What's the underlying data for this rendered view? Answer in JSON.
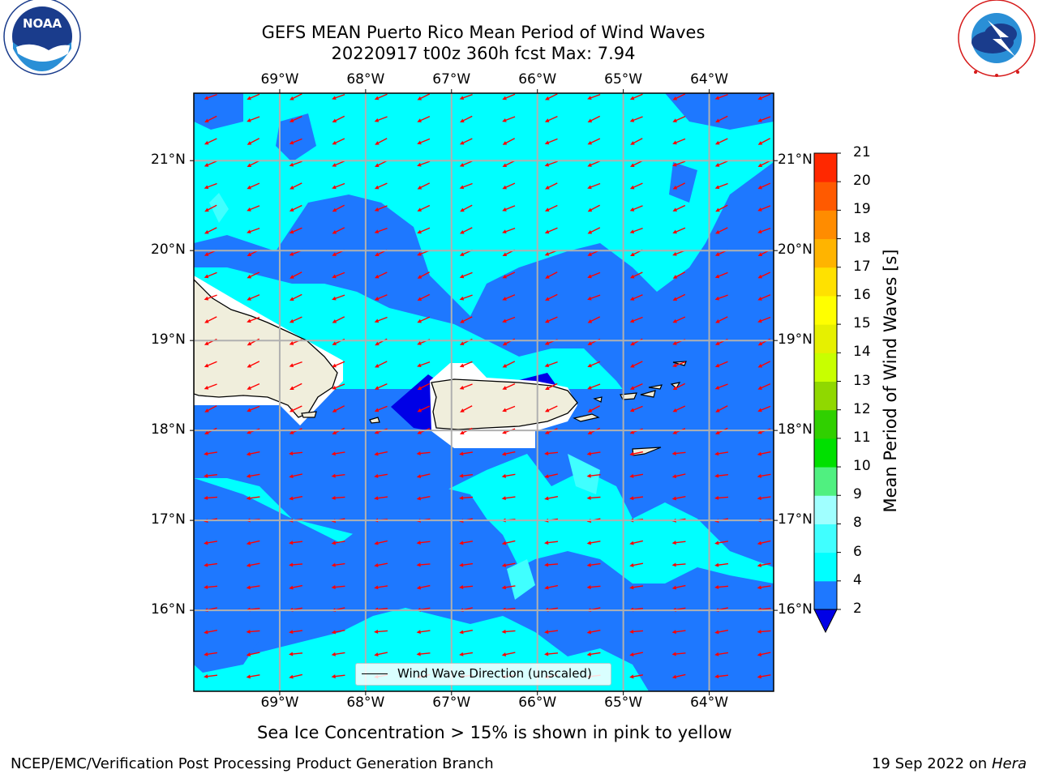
{
  "title": {
    "line1": "GEFS MEAN Puerto Rico Mean Period of Wind Waves",
    "line2": "20220917 t00z 360h fcst   Max: 7.94"
  },
  "axes": {
    "lon_labels": [
      "69°W",
      "68°W",
      "67°W",
      "66°W",
      "65°W",
      "64°W"
    ],
    "lat_labels": [
      "21°N",
      "20°N",
      "19°N",
      "18°N",
      "17°N",
      "16°N"
    ],
    "lon_values": [
      -69,
      -68,
      -67,
      -66,
      -65,
      -64
    ],
    "lat_values": [
      21,
      20,
      19,
      18,
      17,
      16
    ],
    "lon_range": [
      -70,
      -63.25
    ],
    "lat_range": [
      15.1,
      21.75
    ]
  },
  "legend": {
    "label": "Wind Wave Direction (unscaled)"
  },
  "colorbar": {
    "label": "Mean Period of Wind Waves [s]",
    "ticks": [
      "2",
      "4",
      "6",
      "8",
      "9",
      "10",
      "11",
      "12",
      "13",
      "14",
      "15",
      "16",
      "17",
      "18",
      "19",
      "20",
      "21"
    ],
    "colors": [
      "#1e78ff",
      "#00ffff",
      "#40ffff",
      "#a0ffff",
      "#50f080",
      "#00e000",
      "#30d000",
      "#90d800",
      "#c8ff00",
      "#e6f000",
      "#ffff00",
      "#ffe100",
      "#ffb400",
      "#ff8c00",
      "#ff5a00",
      "#ff2800"
    ],
    "under_color": "#0000e6"
  },
  "field": {
    "colors": {
      "low": "#1e78ff",
      "mid": "#00ffff",
      "high": "#40ffff",
      "deep": "#0000e6",
      "land": "#f0eedc"
    },
    "arrow_color": "#ff0000"
  },
  "logos": {
    "noaa": {
      "text": "NOAA",
      "ring": "NATIONAL OCEANIC AND ATMOSPHERIC ADMINISTRATION · U.S. DEPARTMENT OF COMMERCE"
    },
    "nws": {
      "ring": "NATIONAL WEATHER SERVICE"
    }
  },
  "footer": {
    "note": "Sea Ice Concentration > 15% is shown in pink to yellow",
    "branch": "NCEP/EMC/Verification Post Processing Product Generation Branch",
    "date": "19 Sep 2022 on",
    "machine": "Hera"
  }
}
